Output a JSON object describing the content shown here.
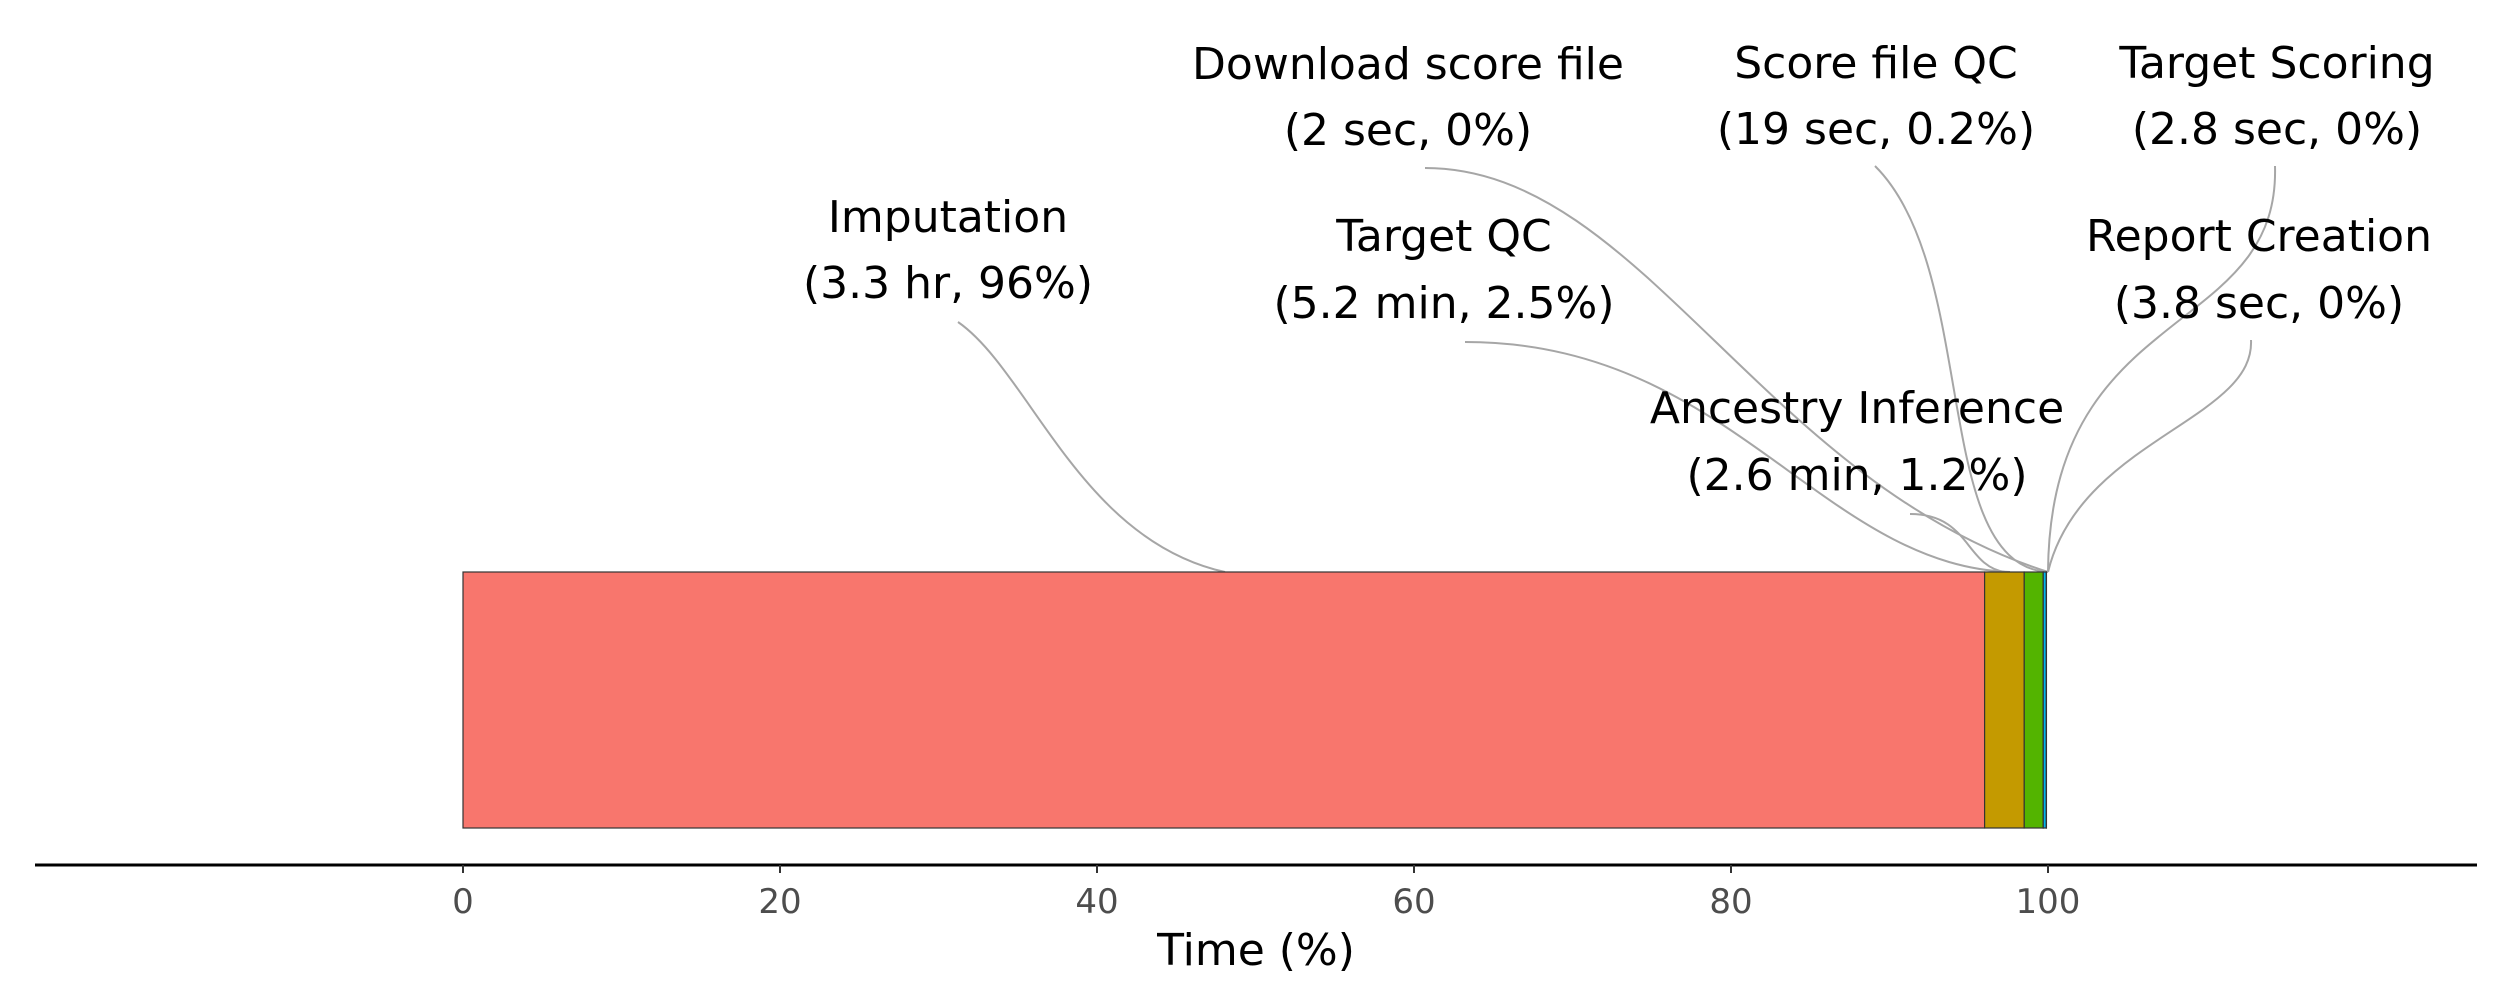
{
  "chart_data": {
    "type": "bar",
    "orientation": "horizontal-stacked",
    "xlabel": "Time (%)",
    "xlim": [
      0,
      100
    ],
    "x_ticks": [
      0,
      20,
      40,
      60,
      80,
      100
    ],
    "grid": false,
    "legend": "none",
    "series": [
      {
        "name": "Imputation",
        "value": 96.0,
        "label": "(3.3 hr, 96%)",
        "color": "#F8766D"
      },
      {
        "name": "Target QC",
        "value": 2.5,
        "label": "(5.2 min, 2.5%)",
        "color": "#C49A00"
      },
      {
        "name": "Ancestry Inference",
        "value": 1.2,
        "label": "(2.6 min, 1.2%)",
        "color": "#53B400"
      },
      {
        "name": "Download score file",
        "value": 0.0,
        "label": "(2 sec, 0%)",
        "color": "#00C094"
      },
      {
        "name": "Score file QC",
        "value": 0.2,
        "label": "(19 sec, 0.2%)",
        "color": "#00B6EB"
      },
      {
        "name": "Target Scoring",
        "value": 0.0,
        "label": "(2.8 sec, 0%)",
        "color": "#A58AFF"
      },
      {
        "name": "Report Creation",
        "value": 0.0,
        "label": "(3.8 sec, 0%)",
        "color": "#FB61D7"
      }
    ]
  }
}
